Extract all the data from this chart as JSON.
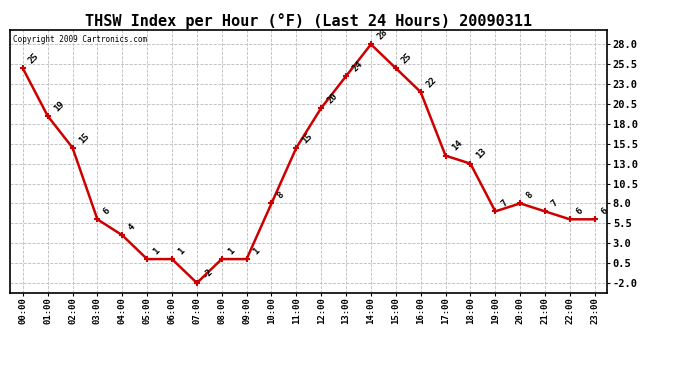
{
  "title": "THSW Index per Hour (°F) (Last 24 Hours) 20090311",
  "copyright_text": "Copyright 2009 Cartronics.com",
  "hours": [
    "00:00",
    "01:00",
    "02:00",
    "03:00",
    "04:00",
    "05:00",
    "06:00",
    "07:00",
    "08:00",
    "09:00",
    "10:00",
    "11:00",
    "12:00",
    "13:00",
    "14:00",
    "15:00",
    "16:00",
    "17:00",
    "18:00",
    "19:00",
    "20:00",
    "21:00",
    "22:00",
    "23:00"
  ],
  "values": [
    25,
    19,
    15,
    6,
    4,
    1,
    1,
    -2,
    1,
    1,
    8,
    15,
    20,
    24,
    28,
    25,
    22,
    14,
    13,
    7,
    8,
    7,
    6,
    6
  ],
  "line_color": "#cc0000",
  "marker_color": "#cc0000",
  "bg_color": "#ffffff",
  "plot_bg_color": "#ffffff",
  "grid_color": "#bbbbbb",
  "title_fontsize": 11,
  "yticks": [
    -2.0,
    0.5,
    3.0,
    5.5,
    8.0,
    10.5,
    13.0,
    15.5,
    18.0,
    20.5,
    23.0,
    25.5,
    28.0
  ],
  "ylim": [
    -3.2,
    29.8
  ],
  "annotation_fontsize": 6.5,
  "line_width": 1.8,
  "marker_size": 5
}
